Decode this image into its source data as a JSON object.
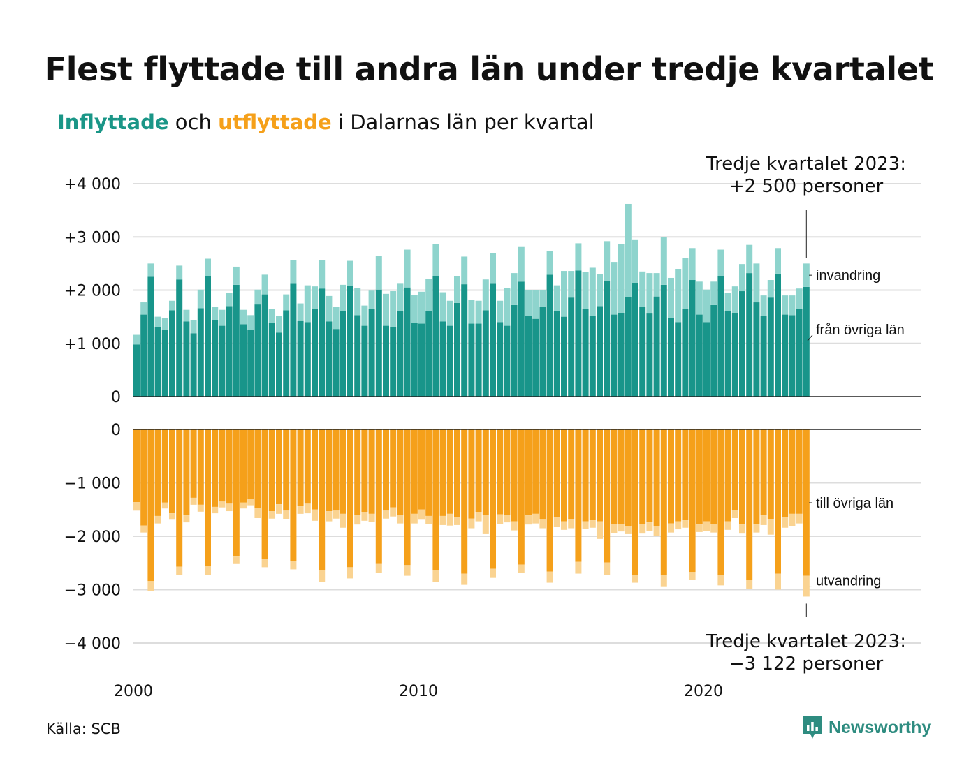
{
  "title": "Flest flyttade till andra län under tredje kvartalet",
  "subtitle": {
    "part1": "Inflyttade",
    "part2": " och ",
    "part3": "utflyttade",
    "part4": " i Dalarnas län per kvartal"
  },
  "source": "Källa: SCB",
  "brand": {
    "name": "Newsworthy",
    "icon": "newsworthy-logo-icon"
  },
  "colors": {
    "in_dark": "#18958a",
    "in_light": "#8ed4cd",
    "out_dark": "#f5a01a",
    "out_light": "#fad391",
    "grid": "#dddddd",
    "baseline": "#222222"
  },
  "chart_data": {
    "type": "bar",
    "stacked": true,
    "x_start": "2000 Q1",
    "x_end": "2023 Q3",
    "x_ticks": [
      "2000",
      "2010",
      "2020"
    ],
    "panels": [
      {
        "name": "inflyttade",
        "ylim": [
          0,
          4000
        ],
        "y_ticks": [
          0,
          1000,
          2000,
          3000,
          4000
        ],
        "y_tick_labels": [
          "0",
          "+1 000",
          "+2 000",
          "+3 000",
          "+4 000"
        ],
        "series": [
          {
            "name": "från övriga län",
            "values": [
              980,
              1540,
              2250,
              1300,
              1250,
              1620,
              2200,
              1410,
              1190,
              1660,
              2260,
              1430,
              1330,
              1700,
              2100,
              1360,
              1250,
              1730,
              1920,
              1390,
              1200,
              1620,
              2120,
              1420,
              1400,
              1640,
              2030,
              1410,
              1270,
              1600,
              2080,
              1530,
              1330,
              1650,
              2010,
              1330,
              1310,
              1600,
              2050,
              1390,
              1370,
              1610,
              2260,
              1410,
              1330,
              1760,
              2110,
              1370,
              1370,
              1620,
              2120,
              1400,
              1330,
              1720,
              2160,
              1520,
              1460,
              1690,
              2290,
              1610,
              1500,
              1860,
              2370,
              1640,
              1520,
              1700,
              2180,
              1540,
              1570,
              1870,
              2130,
              1690,
              1560,
              1880,
              2100,
              1480,
              1400,
              1640,
              2190,
              1540,
              1400,
              1720,
              2260,
              1600,
              1570,
              1980,
              2320,
              1770,
              1510,
              1860,
              2310,
              1540,
              1530,
              1650,
              2060
            ]
          },
          {
            "name": "invandring",
            "values": [
              180,
              230,
              250,
              200,
              220,
              180,
              260,
              220,
              250,
              350,
              330,
              250,
              300,
              250,
              340,
              270,
              280,
              280,
              370,
              250,
              320,
              300,
              440,
              330,
              690,
              430,
              530,
              480,
              420,
              500,
              470,
              510,
              380,
              340,
              630,
              600,
              670,
              520,
              710,
              520,
              600,
              600,
              610,
              550,
              470,
              500,
              520,
              440,
              430,
              580,
              580,
              400,
              710,
              600,
              650,
              480,
              540,
              310,
              450,
              480,
              860,
              500,
              510,
              700,
              900,
              600,
              740,
              990,
              1290,
              1750,
              810,
              660,
              760,
              440,
              890,
              750,
              1000,
              960,
              600,
              620,
              610,
              440,
              500,
              350,
              500,
              510,
              530,
              730,
              390,
              330,
              480,
              360,
              370,
              380,
              440
            ]
          }
        ]
      },
      {
        "name": "utflyttade",
        "ylim": [
          -4000,
          0
        ],
        "y_ticks": [
          0,
          -1000,
          -2000,
          -3000,
          -4000
        ],
        "y_tick_labels": [
          "0",
          "−1 000",
          "−2 000",
          "−3 000",
          "−4 000"
        ],
        "series": [
          {
            "name": "till övriga län",
            "values": [
              -1360,
              -1800,
              -2840,
              -1620,
              -1370,
              -1570,
              -2570,
              -1610,
              -1280,
              -1410,
              -2560,
              -1450,
              -1350,
              -1390,
              -2380,
              -1370,
              -1310,
              -1480,
              -2420,
              -1530,
              -1400,
              -1520,
              -2460,
              -1440,
              -1390,
              -1500,
              -2640,
              -1530,
              -1520,
              -1580,
              -2580,
              -1600,
              -1550,
              -1580,
              -2520,
              -1520,
              -1460,
              -1600,
              -2540,
              -1580,
              -1500,
              -1620,
              -2640,
              -1620,
              -1580,
              -1650,
              -2700,
              -1670,
              -1550,
              -1600,
              -2610,
              -1590,
              -1600,
              -1720,
              -2530,
              -1610,
              -1580,
              -1690,
              -2660,
              -1650,
              -1720,
              -1680,
              -2480,
              -1720,
              -1700,
              -1720,
              -2490,
              -1770,
              -1770,
              -1810,
              -2730,
              -1770,
              -1740,
              -1820,
              -2730,
              -1760,
              -1720,
              -1700,
              -2670,
              -1780,
              -1720,
              -1770,
              -2720,
              -1720,
              -1510,
              -1780,
              -2820,
              -1780,
              -1610,
              -1680,
              -2700,
              -1650,
              -1580,
              -1580,
              -2740
            ]
          },
          {
            "name": "utvandring",
            "values": [
              -160,
              -130,
              -190,
              -140,
              -110,
              -120,
              -160,
              -130,
              -130,
              -130,
              -160,
              -120,
              -110,
              -140,
              -140,
              -110,
              -110,
              -180,
              -160,
              -140,
              -180,
              -160,
              -160,
              -140,
              -180,
              -210,
              -220,
              -190,
              -150,
              -260,
              -210,
              -180,
              -160,
              -150,
              -160,
              -150,
              -170,
              -160,
              -200,
              -180,
              -190,
              -150,
              -210,
              -170,
              -220,
              -140,
              -210,
              -180,
              -170,
              -360,
              -170,
              -180,
              -140,
              -170,
              -160,
              -170,
              -180,
              -160,
              -210,
              -180,
              -160,
              -170,
              -220,
              -140,
              -140,
              -330,
              -230,
              -170,
              -140,
              -150,
              -140,
              -180,
              -160,
              -170,
              -220,
              -170,
              -150,
              -140,
              -150,
              -140,
              -180,
              -160,
              -200,
              -160,
              -150,
              -170,
              -160,
              -150,
              -180,
              -290,
              -300,
              -190,
              -230,
              -180,
              -390
            ]
          }
        ]
      }
    ],
    "annotations": {
      "top_label": "Tredje kvartalet 2023:",
      "top_value": "+2 500 personer",
      "bottom_label": "Tredje kvartalet 2023:",
      "bottom_value": "−3 122 personer",
      "in_invandring": "invandring",
      "in_lan": "från övriga län",
      "out_lan": "till övriga län",
      "out_utvandring": "utvandring"
    }
  }
}
